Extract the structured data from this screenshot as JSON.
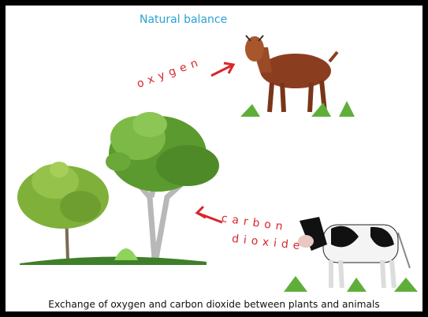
{
  "title": "Natural balance",
  "flows": [
    {
      "label": "oxygen"
    },
    {
      "label_lines": [
        "carbon",
        "dioxide"
      ]
    }
  ],
  "caption": "Exchange of oxygen and carbon dioxide between plants and animals"
}
